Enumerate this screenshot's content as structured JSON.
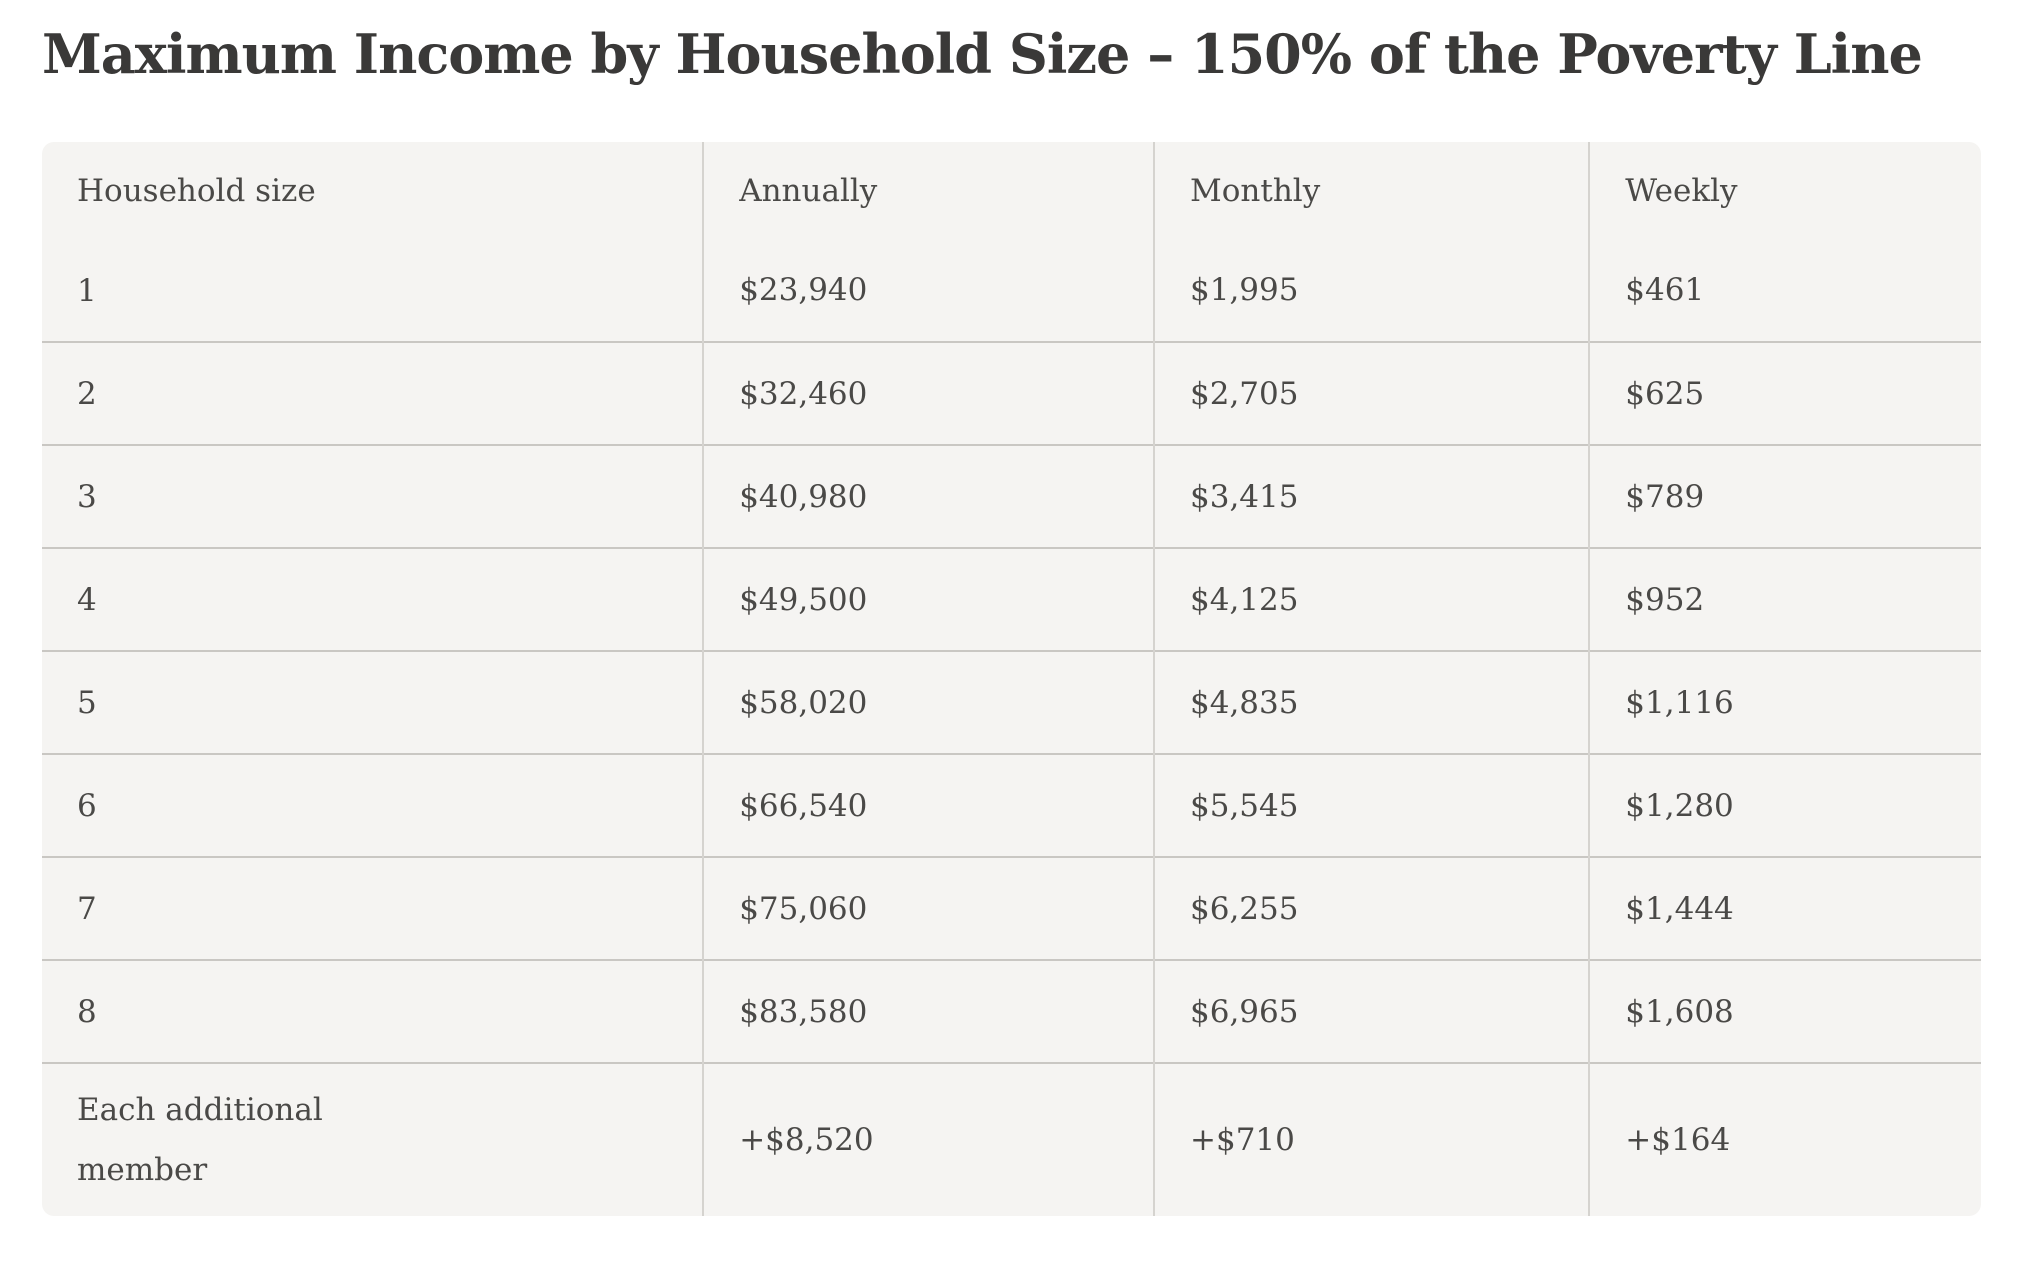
{
  "page": {
    "title": "Maximum Income by Household Size – 150% of the Poverty Line"
  },
  "table": {
    "columns": [
      "Household size",
      "Annually",
      "Monthly",
      "Weekly"
    ],
    "rows": [
      {
        "household_size": "1",
        "annually": "$23,940",
        "monthly": "$1,995",
        "weekly": "$461"
      },
      {
        "household_size": "2",
        "annually": "$32,460",
        "monthly": "$2,705",
        "weekly": "$625"
      },
      {
        "household_size": "3",
        "annually": "$40,980",
        "monthly": "$3,415",
        "weekly": "$789"
      },
      {
        "household_size": "4",
        "annually": "$49,500",
        "monthly": "$4,125",
        "weekly": "$952"
      },
      {
        "household_size": "5",
        "annually": "$58,020",
        "monthly": "$4,835",
        "weekly": "$1,116"
      },
      {
        "household_size": "6",
        "annually": "$66,540",
        "monthly": "$5,545",
        "weekly": "$1,280"
      },
      {
        "household_size": "7",
        "annually": "$75,060",
        "monthly": "$6,255",
        "weekly": "$1,444"
      },
      {
        "household_size": "8",
        "annually": "$83,580",
        "monthly": "$6,965",
        "weekly": "$1,608"
      },
      {
        "household_size": "Each additional member",
        "annually": "+$8,520",
        "monthly": "+$710",
        "weekly": "+$164"
      }
    ]
  },
  "colors": {
    "page_background": "#ffffff",
    "cell_background": "#f5f4f2",
    "divider_vertical": "#d5d3cf",
    "divider_horizontal": "#c9c7c3",
    "body_text": "#4a4947",
    "title_text": "#3a3938"
  }
}
